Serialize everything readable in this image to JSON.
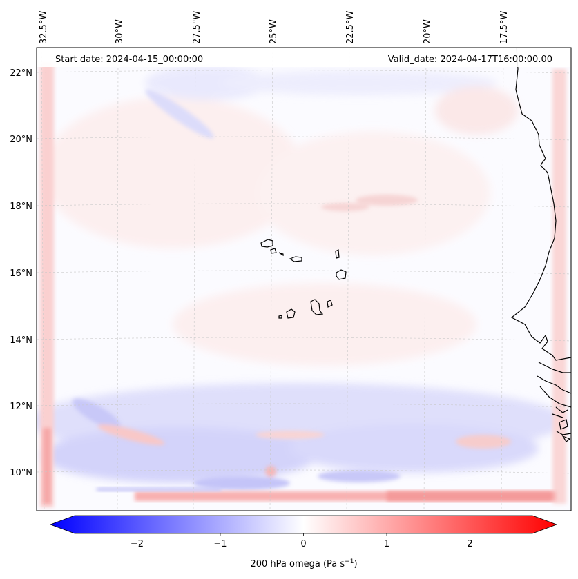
{
  "header": {
    "start_date": "Start date: 2024-04-15_00:00:00",
    "valid_date": "Valid_date: 2024-04-17T16:00:00.00"
  },
  "map": {
    "lon_labels": [
      "32.5°W",
      "30°W",
      "27.5°W",
      "25°W",
      "22.5°W",
      "20°W",
      "17.5°W"
    ],
    "lat_labels": [
      "22°N",
      "20°N",
      "18°N",
      "16°N",
      "14°N",
      "12°N",
      "10°N"
    ],
    "coastline_color": "#000000",
    "gridline_color": "#c8c8c8"
  },
  "colorbar": {
    "cmap": "bwr",
    "min_color": "#0000ff",
    "mid_color": "#ffffff",
    "max_color": "#ff0000",
    "range": [
      -2.75,
      2.75
    ],
    "ticks": [
      "−2",
      "−1",
      "0",
      "1",
      "2"
    ],
    "tick_values": [
      -2,
      -1,
      0,
      1,
      2
    ],
    "extend": "both",
    "label_main": "200 hPa omega (Pa s",
    "label_sup": "−1",
    "label_end": ")"
  }
}
